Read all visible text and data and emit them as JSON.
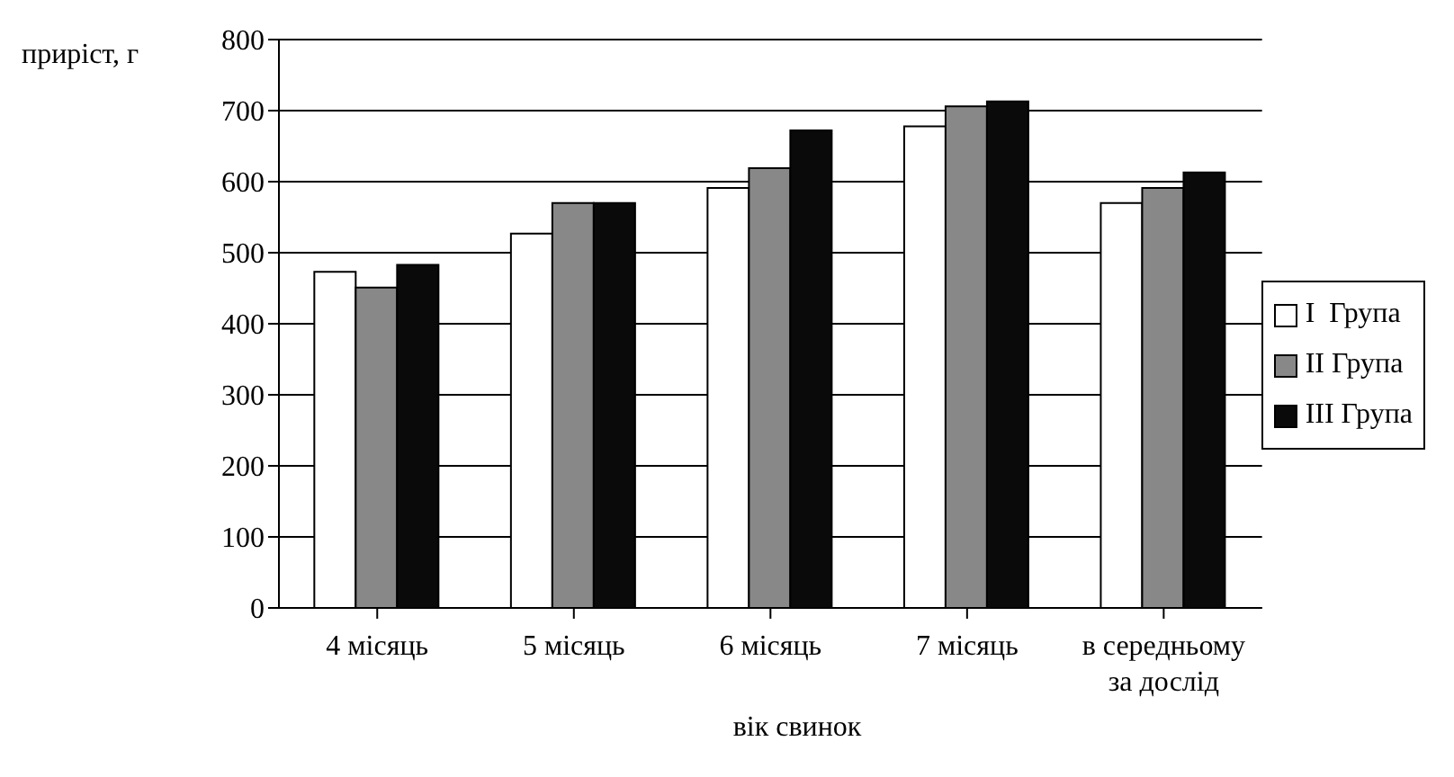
{
  "chart_data": {
    "type": "bar",
    "ylabel": "приріст, г",
    "xlabel": "вік свинок",
    "categories": [
      "4 місяць",
      "5 місяць",
      "6 місяць",
      "7 місяць",
      "в середньому за дослід"
    ],
    "series": [
      {
        "name": "I  Група",
        "color": "#ffffff",
        "values": [
          473,
          527,
          591,
          678,
          570
        ]
      },
      {
        "name": "II Група",
        "color": "#888888",
        "values": [
          451,
          570,
          619,
          706,
          591
        ]
      },
      {
        "name": "III Група",
        "color": "#0a0a0a",
        "values": [
          483,
          570,
          672,
          713,
          613
        ]
      }
    ],
    "ylim": [
      0,
      800
    ],
    "yticks": [
      0,
      100,
      200,
      300,
      400,
      500,
      600,
      700,
      800
    ],
    "grid": "y",
    "legend": "right"
  }
}
